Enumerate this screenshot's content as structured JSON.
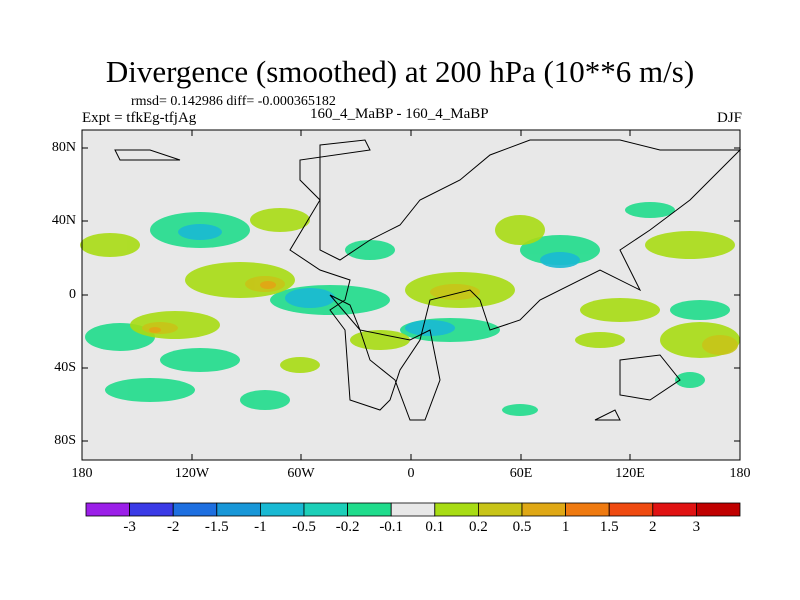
{
  "figure": {
    "title": "Divergence (smoothed) at 200 hPa (10**6 m/s)",
    "stats": "rmsd= 0.142986 diff= -0.000365182",
    "experiment": "Expt = tfkEg-tfjAg",
    "subtitle": "160_4_MaBP - 160_4_MaBP",
    "season": "DJF"
  },
  "axes": {
    "y_ticks": [
      "80N",
      "40N",
      "0",
      "40S",
      "80S"
    ],
    "x_ticks": [
      "180",
      "120W",
      "60W",
      "0",
      "60E",
      "120E",
      "180"
    ]
  },
  "colorbar": {
    "labels": [
      "-3",
      "-2",
      "-1.5",
      "-1",
      "-0.5",
      "-0.2",
      "-0.1",
      "0.1",
      "0.2",
      "0.5",
      "1",
      "1.5",
      "2",
      "3"
    ],
    "colors": [
      "#9b1fe8",
      "#3a3ae6",
      "#1e6fe0",
      "#1897d8",
      "#19b9d3",
      "#1ccfb8",
      "#20dc8c",
      "#e8e8e8",
      "#a8dc14",
      "#c8c418",
      "#dfa815",
      "#ef7a10",
      "#ef4a10",
      "#e01212",
      "#c00000"
    ]
  },
  "map": {
    "background_color": "#e8e8e8",
    "land_outline_color": "#000000"
  }
}
